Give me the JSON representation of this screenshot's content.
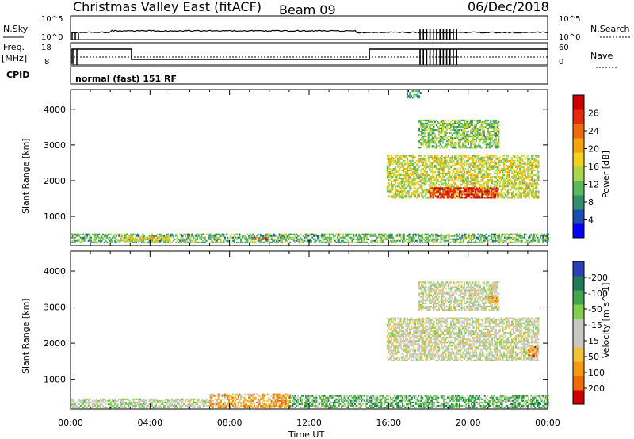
{
  "header": {
    "title": "Christmas Valley East (fitACF)",
    "beam": "Beam 09",
    "date": "06/Dec/2018"
  },
  "strips": {
    "nsky_label": "N.Sky",
    "nsearch_label": "N.Search",
    "nsky_ticks": [
      "10^5",
      "10^0"
    ],
    "nsearch_ticks": [
      "10^5",
      "10^0"
    ],
    "freq_label_1": "Freq.",
    "freq_label_2": "[MHz]",
    "freq_ticks": [
      "18",
      "8"
    ],
    "nave_label": "Nave",
    "nave_ticks": [
      "60",
      "0"
    ],
    "cpid_label": "CPID",
    "cpid_text": "normal (fast) 151 RF"
  },
  "colors": {
    "power_scale": [
      "#0000ff",
      "#1a4cb3",
      "#2f8f6f",
      "#5bb85b",
      "#a8d84a",
      "#f2d21a",
      "#f5a40c",
      "#f06a0a",
      "#e62a0a",
      "#d00000"
    ],
    "velocity_scale": [
      "#2a3fb8",
      "#1f7a5a",
      "#3ea84a",
      "#7fd04a",
      "#c8c8c0",
      "#c8c8c0",
      "#f2c23a",
      "#f59a10",
      "#f06a0a",
      "#d00000"
    ]
  },
  "chart_data": [
    {
      "type": "heatmap",
      "name": "power",
      "ylabel": "Slant Range [km]",
      "yticks": [
        "4000",
        "3000",
        "2000",
        "1000"
      ],
      "ytick_values": [
        4000,
        3000,
        2000,
        1000
      ],
      "ylim": [
        180,
        4550
      ],
      "xlim": [
        0,
        24
      ],
      "colorbar_label": "Power [dB]",
      "colorbar_ticks": [
        "28",
        "24",
        "20",
        "16",
        "12",
        "8",
        "4"
      ],
      "colorbar_values": [
        28,
        24,
        20,
        16,
        12,
        8,
        4
      ],
      "colorbar_range": [
        0,
        32
      ],
      "features": [
        {
          "t0": 0.0,
          "t1": 24.0,
          "r0": 250,
          "r1": 500,
          "level": 0.35
        },
        {
          "t0": 2.5,
          "t1": 5.0,
          "r0": 300,
          "r1": 420,
          "level": 0.55
        },
        {
          "t0": 9.2,
          "t1": 9.8,
          "r0": 330,
          "r1": 400,
          "level": 0.95
        },
        {
          "t0": 15.9,
          "t1": 23.5,
          "r0": 1500,
          "r1": 2700,
          "level": 0.5
        },
        {
          "t0": 18.0,
          "t1": 21.5,
          "r0": 1500,
          "r1": 1800,
          "level": 0.9
        },
        {
          "t0": 17.5,
          "t1": 21.5,
          "r0": 2900,
          "r1": 3700,
          "level": 0.4
        },
        {
          "t0": 16.9,
          "t1": 17.6,
          "r0": 4300,
          "r1": 4500,
          "level": 0.3
        }
      ]
    },
    {
      "type": "heatmap",
      "name": "velocity",
      "ylabel": "Slant Range [km]",
      "yticks": [
        "4000",
        "3000",
        "2000",
        "1000"
      ],
      "ytick_values": [
        4000,
        3000,
        2000,
        1000
      ],
      "ylim": [
        180,
        4550
      ],
      "xlim": [
        0,
        24
      ],
      "xlabel": "Time UT",
      "xticks": [
        "00:00",
        "04:00",
        "08:00",
        "12:00",
        "16:00",
        "20:00",
        "00:00"
      ],
      "xtick_values": [
        0,
        4,
        8,
        12,
        16,
        20,
        24
      ],
      "colorbar_label": "Velocity [m s^-1]",
      "colorbar_ticks": [
        "200",
        "100",
        "50",
        "15",
        "-15",
        "-50",
        "-100",
        "-200"
      ],
      "colorbar_values": [
        200,
        100,
        50,
        15,
        -15,
        -50,
        -100,
        -200
      ],
      "features": [
        {
          "t0": 0.0,
          "t1": 7.0,
          "r0": 200,
          "r1": 450,
          "level": 0.45
        },
        {
          "t0": 7.0,
          "t1": 11.0,
          "r0": 200,
          "r1": 600,
          "level": 0.7
        },
        {
          "t0": 11.0,
          "t1": 24.0,
          "r0": 200,
          "r1": 550,
          "level": 0.3
        },
        {
          "t0": 15.9,
          "t1": 23.5,
          "r0": 1500,
          "r1": 2700,
          "level": 0.5
        },
        {
          "t0": 17.5,
          "t1": 21.5,
          "r0": 2900,
          "r1": 3700,
          "level": 0.5
        },
        {
          "t0": 21.0,
          "t1": 21.5,
          "r0": 3100,
          "r1": 3300,
          "level": 0.7
        },
        {
          "t0": 23.0,
          "t1": 23.5,
          "r0": 1600,
          "r1": 1900,
          "level": 0.75
        }
      ]
    }
  ]
}
